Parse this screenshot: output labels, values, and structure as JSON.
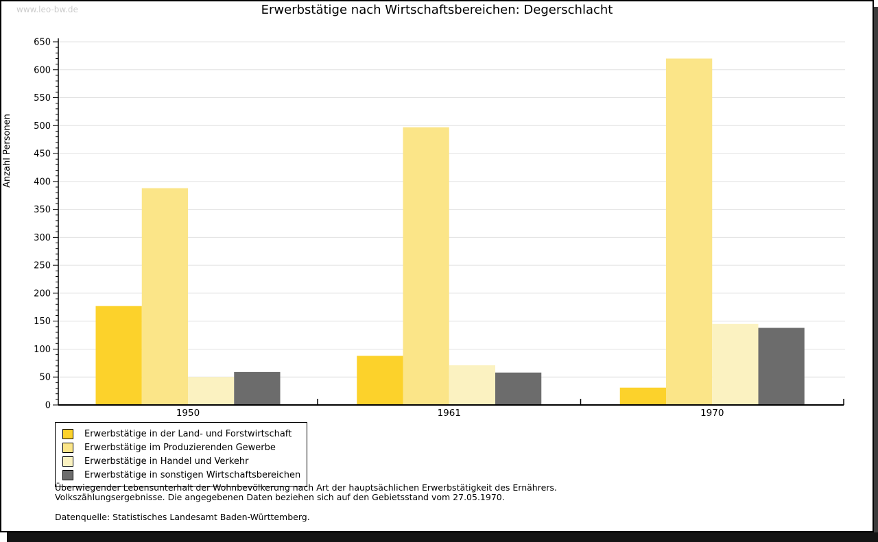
{
  "watermark": "www.leo-bw.de",
  "title": "Erwerbstätige nach Wirtschaftsbereichen: Degerschlacht",
  "chart_data": {
    "type": "bar",
    "title": "Erwerbstätige nach Wirtschaftsbereichen: Degerschlacht",
    "xlabel": "",
    "ylabel": "Anzahl Personen",
    "categories": [
      "1950",
      "1961",
      "1970"
    ],
    "series": [
      {
        "name": "Erwerbstätige in der Land- und Forstwirtschaft",
        "color": "#FCD22B",
        "values": [
          177,
          88,
          31
        ]
      },
      {
        "name": "Erwerbstätige im Produzierenden Gewerbe",
        "color": "#FBE588",
        "values": [
          388,
          497,
          620
        ]
      },
      {
        "name": "Erwerbstätige in Handel und Verkehr",
        "color": "#FBF2C1",
        "values": [
          50,
          71,
          145
        ]
      },
      {
        "name": "Erwerbstätige in sonstigen Wirtschaftsbereichen",
        "color": "#6C6C6C",
        "values": [
          59,
          58,
          138
        ]
      }
    ],
    "ylim": [
      0,
      650
    ],
    "ytick_major_step": 50,
    "ytick_minor_step": 10,
    "grid": true,
    "gridline_color": "#E0E0E0",
    "legend_position": "bottom-left"
  },
  "footnotes": {
    "line1": "Überwiegender Lebensunterhalt der Wohnbevölkerung nach Art der hauptsächlichen Erwerbstätigkeit des Ernährers.",
    "line2": "Volkszählungsergebnisse. Die angegebenen Daten beziehen sich auf den Gebietsstand vom 27.05.1970.",
    "source": "Datenquelle: Statistisches Landesamt Baden-Württemberg."
  }
}
